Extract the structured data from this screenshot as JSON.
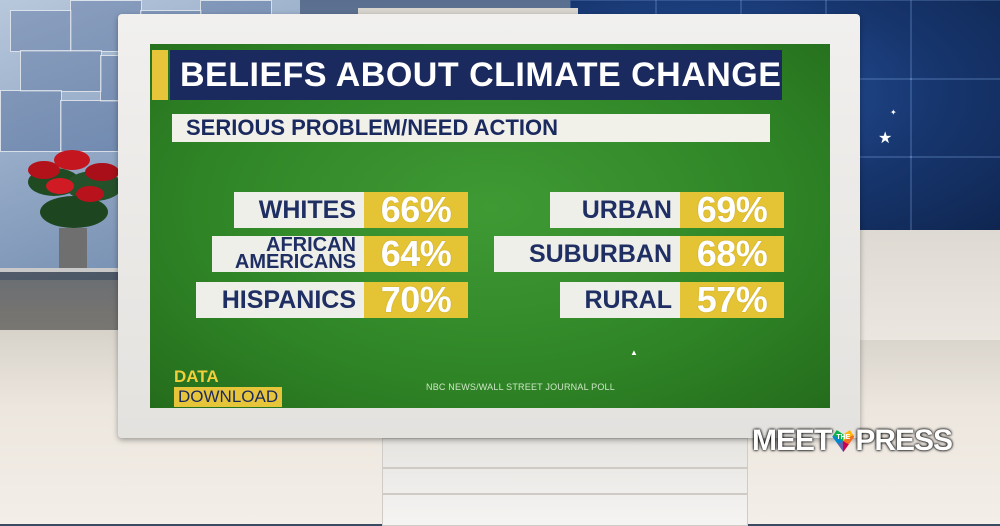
{
  "graphic": {
    "title": "BELIEFS ABOUT CLIMATE CHANGE",
    "subtitle": "SERIOUS PROBLEM/NEED ACTION",
    "left_group": [
      {
        "label_lines": [
          "WHITES"
        ],
        "value": "66%"
      },
      {
        "label_lines": [
          "AFRICAN",
          "AMERICANS"
        ],
        "value": "64%"
      },
      {
        "label_lines": [
          "HISPANICS"
        ],
        "value": "70%"
      }
    ],
    "right_group": [
      {
        "label_lines": [
          "URBAN"
        ],
        "value": "69%"
      },
      {
        "label_lines": [
          "SUBURBAN"
        ],
        "value": "68%"
      },
      {
        "label_lines": [
          "RURAL"
        ],
        "value": "57%"
      }
    ],
    "segment": {
      "line1": "DATA",
      "line2": "DOWNLOAD"
    },
    "source": "NBC NEWS/WALL STREET JOURNAL POLL"
  },
  "show_logo": {
    "left": "MEET",
    "small": "THE",
    "right": "PRESS"
  },
  "colors": {
    "screen_green": "#2f8526",
    "title_navy": "#1b2a5e",
    "value_gold": "#e4c334",
    "label_white": "#eeefe9"
  }
}
